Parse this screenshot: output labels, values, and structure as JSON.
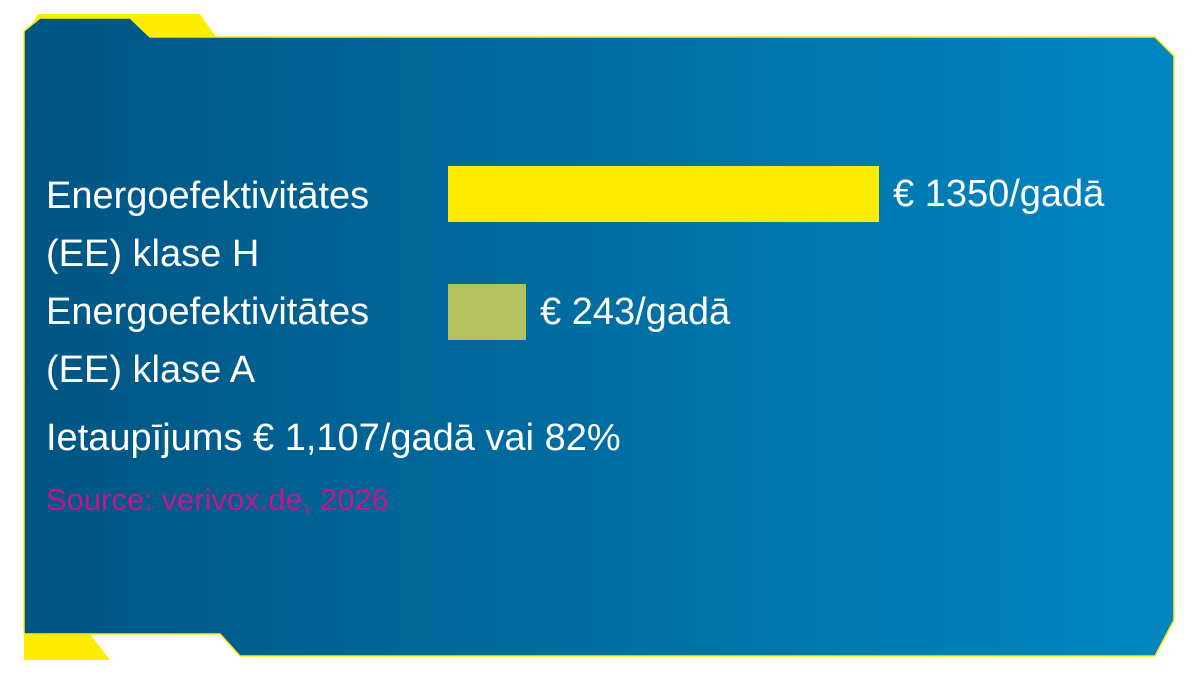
{
  "colors": {
    "panel_start": "#005583",
    "panel_end": "#0086C2",
    "accent_yellow": "#FFED00",
    "accent_green": "#B3C25E",
    "source_magenta": "#C4168C",
    "text": "#FFFFFF"
  },
  "chart_data": {
    "type": "bar",
    "orientation": "horizontal",
    "categories": [
      [
        "Energoefektivitātes",
        "(EE) klase H"
      ],
      [
        "Energoefektivitātes",
        "(EE) klase A"
      ]
    ],
    "values": [
      1350,
      243
    ],
    "value_labels": [
      "€ 1350/gadā",
      "€ 243/gadā"
    ],
    "bar_colors": [
      "#FFED00",
      "#B3C25E"
    ],
    "annotation": "Ietaupījums € 1,107/gadā vai 82%",
    "source": "Source: verivox.de, 2026"
  }
}
